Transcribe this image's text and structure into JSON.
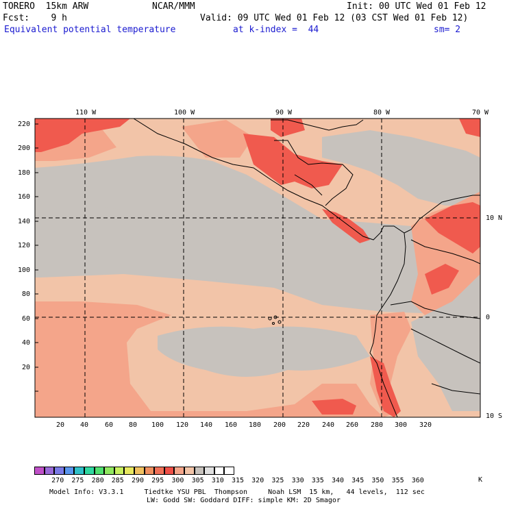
{
  "header": {
    "model": "TORERO  15km ARW",
    "center": "NCAR/MMM",
    "init": "Init: 00 UTC Wed 01 Feb 12",
    "fcst": "Fcst:    9 h",
    "valid": "Valid: 09 UTC Wed 01 Feb 12 (03 CST Wed 01 Feb 12)",
    "field": "Equivalent potential temperature",
    "level": "at k-index =  44",
    "smooth": "sm= 2"
  },
  "colors": {
    "land_border": "#000000",
    "grid": "#000000",
    "shade_345": "#c7c2bd",
    "shade_340": "#f2c4a8",
    "shade_335": "#f4a58a",
    "shade_330": "#f05a4e"
  },
  "top_lon_labels": [
    "110 W",
    "100 W",
    "90 W",
    "80 W",
    "70 W"
  ],
  "right_lat_labels": [
    "10 N",
    "0",
    "10 S"
  ],
  "y_axis_ticks": [
    "220",
    "200",
    "180",
    "160",
    "140",
    "120",
    "100",
    "80",
    "60",
    "40",
    "20"
  ],
  "x_axis_ticks": [
    "20",
    "40",
    "60",
    "80",
    "100",
    "120",
    "140",
    "160",
    "180",
    "200",
    "220",
    "240",
    "260",
    "280",
    "300",
    "320"
  ],
  "colorbar": {
    "labels": [
      "270",
      "275",
      "280",
      "285",
      "290",
      "295",
      "300",
      "305",
      "310",
      "315",
      "320",
      "325",
      "330",
      "335",
      "340",
      "345",
      "350",
      "355",
      "360"
    ],
    "unit": "K",
    "colors": [
      "#c050c8",
      "#9a6ad8",
      "#7a7ae6",
      "#5a96ee",
      "#30c0c8",
      "#30d8a0",
      "#50e070",
      "#90e860",
      "#c8f060",
      "#e8e860",
      "#f0c060",
      "#f09060",
      "#f07058",
      "#f05048",
      "#f4a58a",
      "#f2c4a8",
      "#c7c2bd",
      "#e0e0e0",
      "#ffffff",
      "#ffffff"
    ]
  },
  "footer": {
    "line1": "Model Info: V3.3.1     Tiedtke YSU PBL  Thompson     Noah LSM  15 km,   44 levels,  112 sec",
    "line2": "LW: Godd SW: Goddard DIFF: simple KM: 2D Smagor"
  }
}
